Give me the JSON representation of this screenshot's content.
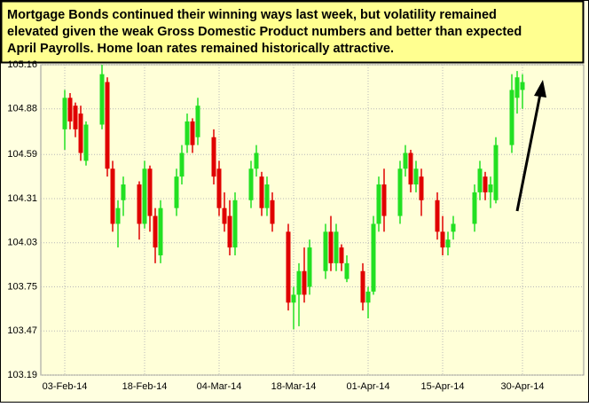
{
  "chart_data": {
    "type": "candlestick",
    "title_lines": [
      "Mortgage Bonds continued their winning ways last week, but volatility remained",
      "elevated given the weak Gross Domestic Product numbers and better than expected",
      "April Payrolls.  Home loan rates remained historically attractive."
    ],
    "categories": [
      "03-Feb-14",
      null,
      null,
      null,
      null,
      null,
      null,
      null,
      null,
      null,
      null,
      null,
      null,
      null,
      null,
      "18-Feb-14",
      null,
      null,
      null,
      null,
      null,
      null,
      null,
      null,
      null,
      null,
      null,
      null,
      null,
      "04-Mar-14",
      null,
      null,
      null,
      null,
      null,
      null,
      null,
      null,
      null,
      null,
      null,
      null,
      null,
      "18-Mar-14",
      null,
      null,
      null,
      null,
      null,
      null,
      null,
      null,
      null,
      null,
      null,
      null,
      null,
      "01-Apr-14",
      null,
      null,
      null,
      null,
      null,
      null,
      null,
      null,
      null,
      null,
      null,
      null,
      null,
      "15-Apr-14",
      null,
      null,
      null,
      null,
      null,
      null,
      null,
      null,
      null,
      null,
      null,
      null,
      null,
      null,
      "30-Apr-14"
    ],
    "open": [
      104.75,
      104.95,
      104.9,
      104.85,
      104.55,
      null,
      null,
      104.78,
      105.05,
      104.5,
      104.15,
      104.3,
      null,
      null,
      104.4,
      104.15,
      104.5,
      104.2,
      103.95,
      null,
      null,
      104.25,
      104.45,
      104.65,
      104.8,
      104.7,
      null,
      null,
      104.7,
      104.5,
      104.25,
      104.2,
      104.0,
      null,
      null,
      104.3,
      104.5,
      104.45,
      104.25,
      104.3,
      null,
      null,
      104.1,
      103.65,
      103.7,
      103.85,
      103.75,
      null,
      null,
      103.85,
      104.1,
      103.9,
      104.0,
      103.8,
      null,
      null,
      103.85,
      103.65,
      103.72,
      104.15,
      104.4,
      null,
      null,
      104.2,
      104.5,
      104.6,
      104.4,
      104.45,
      null,
      null,
      104.3,
      104.1,
      104.0,
      104.1,
      null,
      null,
      null,
      104.15,
      104.35,
      104.45,
      104.35,
      104.3,
      null,
      null,
      104.65,
      104.95,
      105.0
    ],
    "high": [
      105.0,
      104.98,
      104.92,
      104.9,
      104.8,
      null,
      null,
      105.16,
      105.08,
      104.55,
      104.3,
      104.45,
      null,
      null,
      104.42,
      104.55,
      104.52,
      104.25,
      104.3,
      null,
      null,
      104.5,
      104.65,
      104.85,
      104.82,
      104.95,
      null,
      null,
      104.75,
      104.55,
      104.35,
      104.3,
      104.35,
      null,
      null,
      104.55,
      104.65,
      104.48,
      104.45,
      104.35,
      null,
      null,
      104.15,
      103.75,
      103.9,
      104.0,
      104.05,
      null,
      null,
      104.15,
      104.2,
      104.15,
      104.02,
      103.95,
      null,
      null,
      103.9,
      103.75,
      104.2,
      104.45,
      104.5,
      null,
      null,
      104.55,
      104.65,
      104.62,
      104.55,
      104.5,
      null,
      null,
      104.35,
      104.2,
      104.1,
      104.2,
      null,
      null,
      null,
      104.4,
      104.55,
      104.48,
      104.45,
      104.7,
      null,
      null,
      105.1,
      105.12,
      105.1
    ],
    "low": [
      104.62,
      104.75,
      104.7,
      104.55,
      104.52,
      null,
      null,
      104.75,
      104.45,
      104.1,
      104.0,
      104.2,
      null,
      null,
      104.05,
      104.12,
      104.1,
      103.9,
      103.9,
      null,
      null,
      104.2,
      104.4,
      104.6,
      104.6,
      104.65,
      null,
      null,
      104.4,
      104.2,
      104.1,
      103.95,
      103.95,
      null,
      null,
      104.25,
      104.45,
      104.2,
      104.2,
      104.1,
      null,
      null,
      103.6,
      103.48,
      103.5,
      103.65,
      103.7,
      null,
      null,
      103.8,
      103.85,
      103.85,
      103.85,
      103.78,
      null,
      null,
      103.6,
      103.55,
      103.7,
      104.1,
      104.1,
      null,
      null,
      104.15,
      104.45,
      104.35,
      104.35,
      104.2,
      null,
      null,
      104.05,
      103.95,
      103.95,
      104.05,
      null,
      null,
      null,
      104.1,
      104.3,
      104.3,
      104.25,
      104.28,
      null,
      null,
      104.6,
      104.85,
      104.88
    ],
    "close": [
      104.95,
      104.8,
      104.75,
      104.6,
      104.78,
      null,
      null,
      105.1,
      104.5,
      104.15,
      104.25,
      104.4,
      null,
      null,
      104.15,
      104.5,
      104.2,
      104.0,
      104.25,
      null,
      null,
      104.45,
      104.6,
      104.8,
      104.65,
      104.9,
      null,
      null,
      104.45,
      104.25,
      104.15,
      104.0,
      104.3,
      null,
      null,
      104.5,
      104.6,
      104.25,
      104.4,
      104.15,
      null,
      null,
      103.65,
      103.7,
      103.85,
      103.7,
      104.0,
      null,
      null,
      104.1,
      103.9,
      104.1,
      103.9,
      103.9,
      null,
      null,
      103.65,
      103.72,
      104.15,
      104.4,
      104.2,
      null,
      null,
      104.5,
      104.6,
      104.4,
      104.5,
      104.3,
      null,
      null,
      104.1,
      104.0,
      104.05,
      104.15,
      null,
      null,
      null,
      104.35,
      104.5,
      104.35,
      104.4,
      104.65,
      null,
      null,
      105.0,
      105.08,
      105.05
    ],
    "up_color": "#22e022",
    "down_color": "#e00000",
    "ylim": [
      103.19,
      105.16
    ],
    "yticks": [
      103.19,
      103.47,
      103.75,
      104.03,
      104.31,
      104.59,
      104.88,
      105.16
    ],
    "grid": true
  }
}
